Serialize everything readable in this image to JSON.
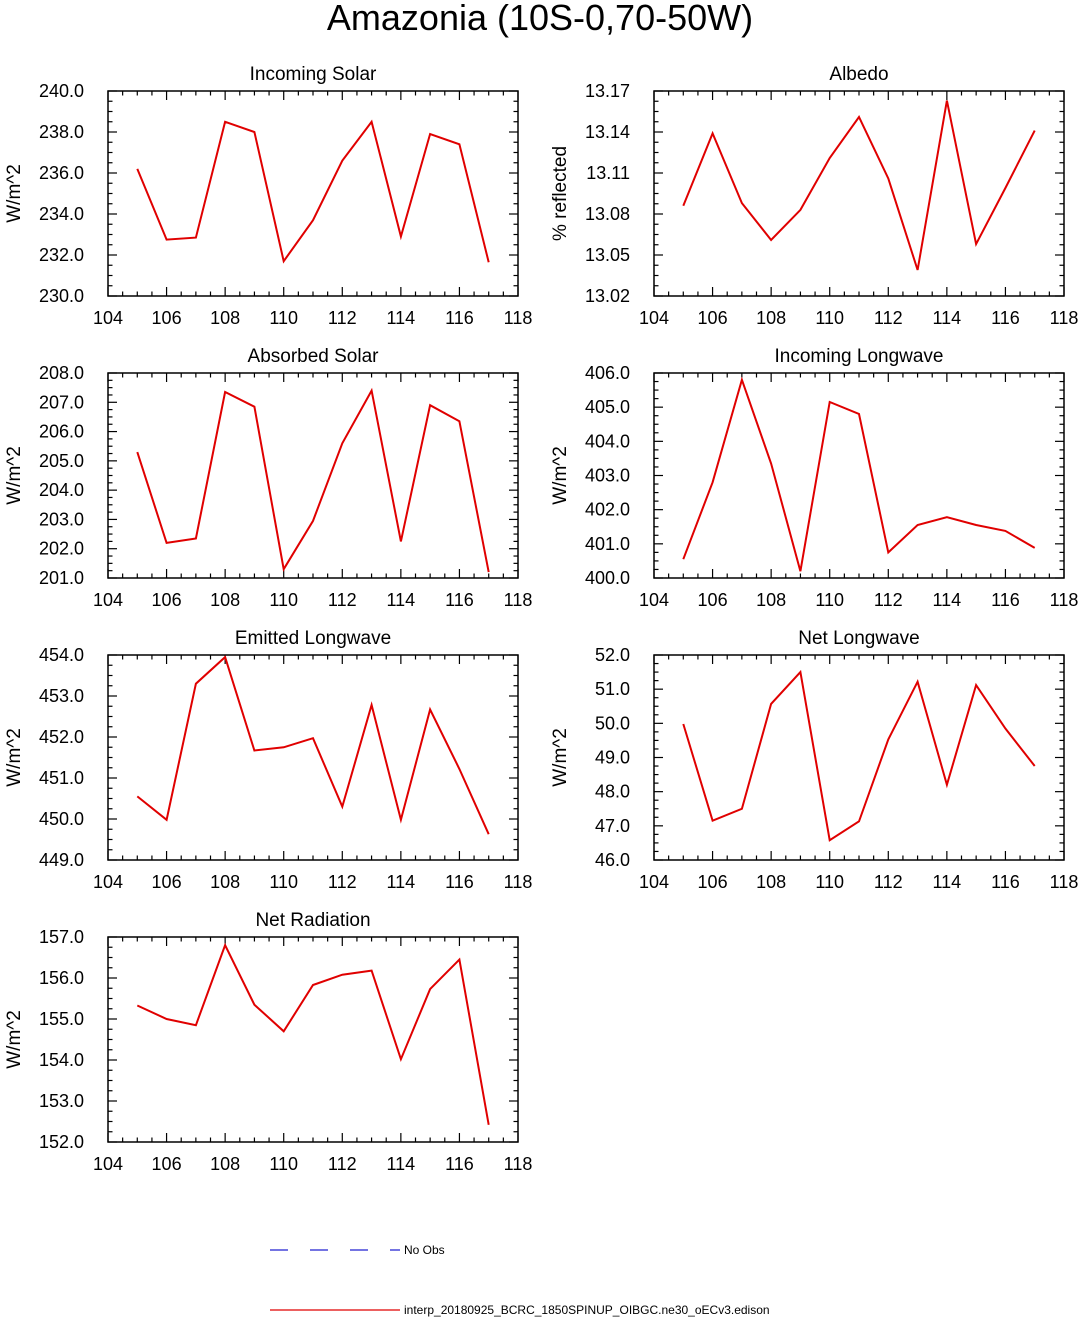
{
  "figure_title": "Amazonia (10S-0,70-50W)",
  "legend": {
    "obs_label": "No Obs",
    "obs_color": "#2020d0",
    "model_label": "interp_20180925_BCRC_1850SPINUP_OIBGC.ne30_oECv3.edison",
    "model_color": "#e00000"
  },
  "chart_data": [
    {
      "type": "line",
      "title": "Incoming Solar",
      "ylabel": "W/m^2",
      "xlim": [
        104,
        118
      ],
      "ylim": [
        230,
        240
      ],
      "xticks": [
        104,
        106,
        108,
        110,
        112,
        114,
        116,
        118
      ],
      "xtick_labels": [
        "104",
        "106",
        "108",
        "110",
        "112",
        "114",
        "116",
        "118"
      ],
      "yticks": [
        230,
        232,
        234,
        236,
        238,
        240
      ],
      "ytick_labels": [
        "230.0",
        "232.0",
        "234.0",
        "236.0",
        "238.0",
        "240.0"
      ],
      "yminor": 0.5,
      "x": [
        105,
        106,
        107,
        108,
        109,
        110,
        111,
        112,
        113,
        114,
        115,
        116,
        117
      ],
      "series": [
        {
          "name": "model",
          "values": [
            236.2,
            232.75,
            232.85,
            238.5,
            238.0,
            231.7,
            233.7,
            236.6,
            238.5,
            232.9,
            237.9,
            237.4,
            231.65
          ]
        }
      ]
    },
    {
      "type": "line",
      "title": "Albedo",
      "ylabel": "% reflected",
      "xlim": [
        104,
        118
      ],
      "ylim": [
        13.02,
        13.17
      ],
      "xticks": [
        104,
        106,
        108,
        110,
        112,
        114,
        116,
        118
      ],
      "xtick_labels": [
        "104",
        "106",
        "108",
        "110",
        "112",
        "114",
        "116",
        "118"
      ],
      "yticks": [
        13.02,
        13.05,
        13.08,
        13.11,
        13.14,
        13.17
      ],
      "ytick_labels": [
        "13.02",
        "13.05",
        "13.08",
        "13.11",
        "13.14",
        "13.17"
      ],
      "yminor": 0.0075,
      "x": [
        105,
        106,
        107,
        108,
        109,
        110,
        111,
        112,
        113,
        114,
        115,
        116,
        117
      ],
      "series": [
        {
          "name": "model",
          "values": [
            13.086,
            13.139,
            13.088,
            13.061,
            13.083,
            13.121,
            13.151,
            13.106,
            13.039,
            13.163,
            13.058,
            13.099,
            13.141
          ]
        }
      ]
    },
    {
      "type": "line",
      "title": "Absorbed Solar",
      "ylabel": "W/m^2",
      "xlim": [
        104,
        118
      ],
      "ylim": [
        201,
        208
      ],
      "xticks": [
        104,
        106,
        108,
        110,
        112,
        114,
        116,
        118
      ],
      "xtick_labels": [
        "104",
        "106",
        "108",
        "110",
        "112",
        "114",
        "116",
        "118"
      ],
      "yticks": [
        201,
        202,
        203,
        204,
        205,
        206,
        207,
        208
      ],
      "ytick_labels": [
        "201.0",
        "202.0",
        "203.0",
        "204.0",
        "205.0",
        "206.0",
        "207.0",
        "208.0"
      ],
      "yminor": 0.25,
      "x": [
        105,
        106,
        107,
        108,
        109,
        110,
        111,
        112,
        113,
        114,
        115,
        116,
        117
      ],
      "series": [
        {
          "name": "model",
          "values": [
            205.3,
            202.2,
            202.35,
            207.35,
            206.85,
            201.3,
            202.95,
            205.6,
            207.4,
            202.25,
            206.9,
            206.35,
            201.2
          ]
        }
      ]
    },
    {
      "type": "line",
      "title": "Incoming Longwave",
      "ylabel": "W/m^2",
      "xlim": [
        104,
        118
      ],
      "ylim": [
        400,
        406
      ],
      "xticks": [
        104,
        106,
        108,
        110,
        112,
        114,
        116,
        118
      ],
      "xtick_labels": [
        "104",
        "106",
        "108",
        "110",
        "112",
        "114",
        "116",
        "118"
      ],
      "yticks": [
        400,
        401,
        402,
        403,
        404,
        405,
        406
      ],
      "ytick_labels": [
        "400.0",
        "401.0",
        "402.0",
        "403.0",
        "404.0",
        "405.0",
        "406.0"
      ],
      "yminor": 0.25,
      "x": [
        105,
        106,
        107,
        108,
        109,
        110,
        111,
        112,
        113,
        114,
        115,
        116,
        117
      ],
      "series": [
        {
          "name": "model",
          "values": [
            400.55,
            402.8,
            405.8,
            403.35,
            400.2,
            405.15,
            404.8,
            400.75,
            401.55,
            401.78,
            401.55,
            401.38,
            400.88
          ]
        }
      ]
    },
    {
      "type": "line",
      "title": "Emitted Longwave",
      "ylabel": "W/m^2",
      "xlim": [
        104,
        118
      ],
      "ylim": [
        449,
        454
      ],
      "xticks": [
        104,
        106,
        108,
        110,
        112,
        114,
        116,
        118
      ],
      "xtick_labels": [
        "104",
        "106",
        "108",
        "110",
        "112",
        "114",
        "116",
        "118"
      ],
      "yticks": [
        449,
        450,
        451,
        452,
        453,
        454
      ],
      "ytick_labels": [
        "449.0",
        "450.0",
        "451.0",
        "452.0",
        "453.0",
        "454.0"
      ],
      "yminor": 0.25,
      "x": [
        105,
        106,
        107,
        108,
        109,
        110,
        111,
        112,
        113,
        114,
        115,
        116,
        117
      ],
      "series": [
        {
          "name": "model",
          "values": [
            450.55,
            449.98,
            453.3,
            453.95,
            451.67,
            451.75,
            451.97,
            450.3,
            452.78,
            449.98,
            452.67,
            451.22,
            449.63
          ]
        }
      ]
    },
    {
      "type": "line",
      "title": "Net Longwave",
      "ylabel": "W/m^2",
      "xlim": [
        104,
        118
      ],
      "ylim": [
        46,
        52
      ],
      "xticks": [
        104,
        106,
        108,
        110,
        112,
        114,
        116,
        118
      ],
      "xtick_labels": [
        "104",
        "106",
        "108",
        "110",
        "112",
        "114",
        "116",
        "118"
      ],
      "yticks": [
        46,
        47,
        48,
        49,
        50,
        51,
        52
      ],
      "ytick_labels": [
        "46.0",
        "47.0",
        "48.0",
        "49.0",
        "50.0",
        "51.0",
        "52.0"
      ],
      "yminor": 0.25,
      "x": [
        105,
        106,
        107,
        108,
        109,
        110,
        111,
        112,
        113,
        114,
        115,
        116,
        117
      ],
      "series": [
        {
          "name": "model",
          "values": [
            49.98,
            47.15,
            47.5,
            50.57,
            51.5,
            46.58,
            47.13,
            49.53,
            51.22,
            48.2,
            51.12,
            49.85,
            48.75
          ]
        }
      ]
    },
    {
      "type": "line",
      "title": "Net Radiation",
      "ylabel": "W/m^2",
      "xlim": [
        104,
        118
      ],
      "ylim": [
        152,
        157
      ],
      "xticks": [
        104,
        106,
        108,
        110,
        112,
        114,
        116,
        118
      ],
      "xtick_labels": [
        "104",
        "106",
        "108",
        "110",
        "112",
        "114",
        "116",
        "118"
      ],
      "yticks": [
        152,
        153,
        154,
        155,
        156,
        157
      ],
      "ytick_labels": [
        "152.0",
        "153.0",
        "154.0",
        "155.0",
        "156.0",
        "157.0"
      ],
      "yminor": 0.25,
      "x": [
        105,
        106,
        107,
        108,
        109,
        110,
        111,
        112,
        113,
        114,
        115,
        116,
        117
      ],
      "series": [
        {
          "name": "model",
          "values": [
            155.33,
            155.0,
            154.85,
            156.8,
            155.35,
            154.7,
            155.83,
            156.08,
            156.18,
            154.02,
            155.73,
            156.45,
            152.42
          ]
        }
      ]
    }
  ]
}
